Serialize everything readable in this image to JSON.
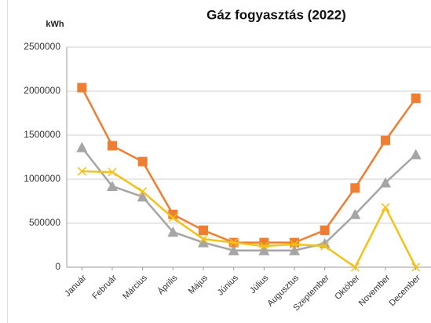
{
  "chart_data": {
    "type": "line",
    "title": "Gáz fogyasztás (2022)",
    "y_label": "kWh",
    "categories": [
      "Január",
      "Február",
      "Március",
      "Április",
      "Május",
      "Június",
      "Július",
      "Augusztus",
      "Szeptember",
      "Október",
      "November",
      "December"
    ],
    "series": [
      {
        "color": "#ef7d32",
        "marker": "square",
        "values": [
          2040000,
          1380000,
          1200000,
          600000,
          420000,
          280000,
          280000,
          280000,
          420000,
          900000,
          1440000,
          1920000
        ]
      },
      {
        "color": "#a5a5a5",
        "marker": "triangle",
        "values": [
          1360000,
          920000,
          800000,
          400000,
          280000,
          190000,
          190000,
          190000,
          270000,
          600000,
          960000,
          1280000
        ]
      },
      {
        "color": "#f5c116",
        "marker": "cross",
        "values": [
          1090000,
          1080000,
          860000,
          560000,
          320000,
          280000,
          240000,
          260000,
          240000,
          0,
          680000,
          0
        ]
      }
    ],
    "ylim": [
      0,
      2500000
    ],
    "yticks": [
      0,
      500000,
      1000000,
      1500000,
      2000000,
      2500000
    ],
    "grid": true
  }
}
